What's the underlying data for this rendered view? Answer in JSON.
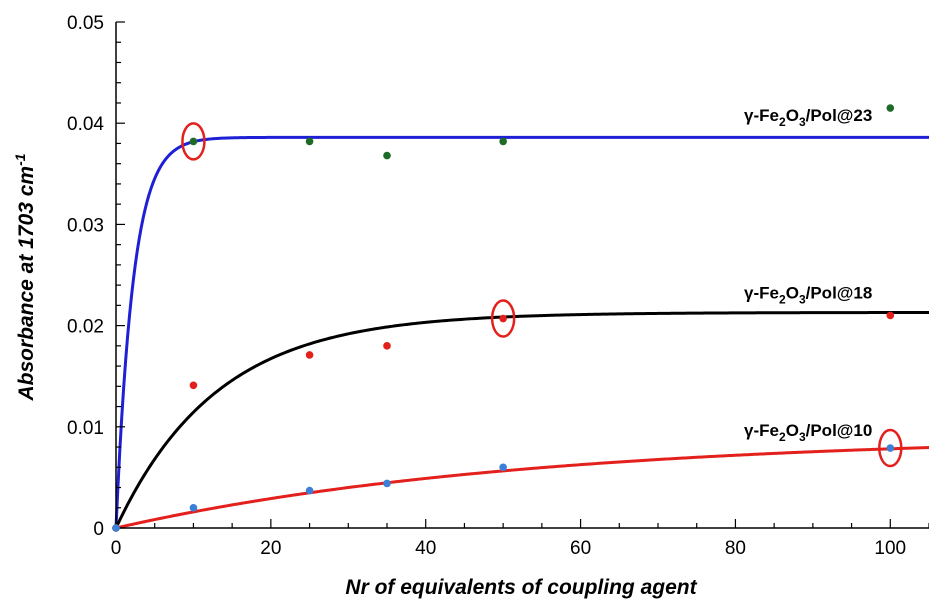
{
  "chart_data": {
    "type": "scatter",
    "xlabel": "Nr of equivalents of coupling agent",
    "ylabel_main": "Absorbance at 1703 cm",
    "ylabel_sup": "-1",
    "xlim": [
      0,
      105
    ],
    "ylim": [
      0,
      0.05
    ],
    "x_ticks": [
      0,
      20,
      40,
      60,
      80,
      100
    ],
    "x_tick_labels": [
      "0",
      "20",
      "40",
      "60",
      "80",
      "100"
    ],
    "y_ticks": [
      0,
      0.01,
      0.02,
      0.03,
      0.04,
      0.05
    ],
    "y_tick_labels": [
      "0",
      "0.01",
      "0.02",
      "0.03",
      "0.04",
      "0.05"
    ],
    "grid": false,
    "series": [
      {
        "name_parts": [
          "γ-Fe",
          "2",
          "O",
          "3",
          "/Pol@23"
        ],
        "point_color": "#1e6b28",
        "curve_color": "#1f1fd6",
        "points": [
          [
            0,
            0
          ],
          [
            10,
            0.0382
          ],
          [
            25,
            0.0382
          ],
          [
            35,
            0.0368
          ],
          [
            50,
            0.0382
          ],
          [
            100,
            0.0415
          ]
        ],
        "fit": {
          "a": 0.0386,
          "k": 0.45
        },
        "label_anchor": [
          100,
          0.0402
        ]
      },
      {
        "name_parts": [
          "γ-Fe",
          "2",
          "O",
          "3",
          "/Pol@18"
        ],
        "point_color": "#e3201b",
        "curve_color": "#000000",
        "points": [
          [
            0,
            0
          ],
          [
            10,
            0.0141
          ],
          [
            25,
            0.0171
          ],
          [
            35,
            0.018
          ],
          [
            50,
            0.0207
          ],
          [
            100,
            0.021
          ]
        ],
        "fit": {
          "a": 0.0213,
          "k": 0.077
        },
        "label_anchor": [
          100,
          0.0227
        ]
      },
      {
        "name_parts": [
          "γ-Fe",
          "2",
          "O",
          "3",
          "/Pol@10"
        ],
        "point_color": "#3a7fd8",
        "curve_color": "#e3201b",
        "points": [
          [
            0,
            0
          ],
          [
            10,
            0.002
          ],
          [
            25,
            0.0037
          ],
          [
            35,
            0.0044
          ],
          [
            50,
            0.006
          ],
          [
            100,
            0.0079
          ]
        ],
        "fit": {
          "a": 0.0092,
          "k": 0.019
        },
        "label_anchor": [
          100,
          0.0091
        ]
      }
    ],
    "highlight_circles": [
      [
        10,
        0.0382
      ],
      [
        50,
        0.0207
      ],
      [
        100,
        0.0079
      ]
    ],
    "highlight_color": "#e3201b"
  }
}
